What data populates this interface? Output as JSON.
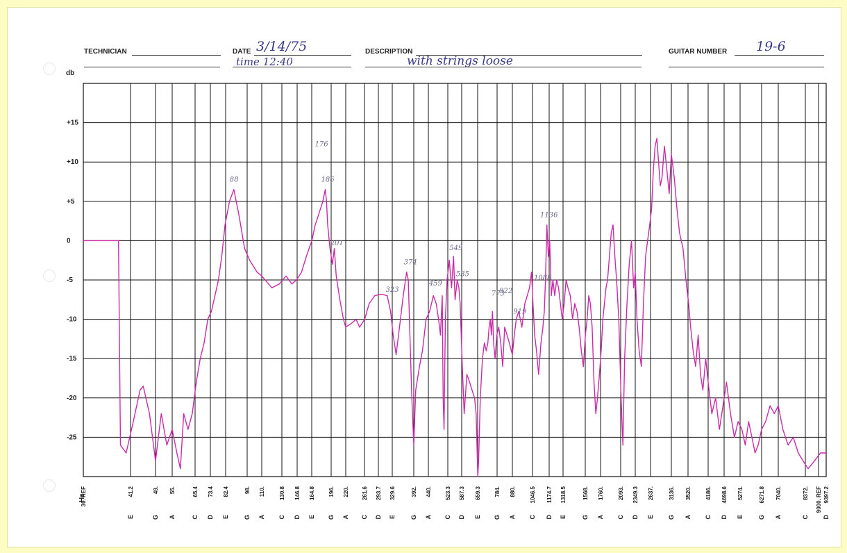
{
  "form": {
    "technician_label": "TECHNICIAN",
    "date_label": "DATE",
    "date_value": "3/14/75",
    "time_value": "time 12:40",
    "description_label": "DESCRIPTION",
    "description_value": "with strings loose",
    "guitar_number_label": "GUITAR NUMBER",
    "guitar_number_value": "19-6"
  },
  "chart_data": {
    "type": "line",
    "ylabel": "db",
    "xlabel": "Hz",
    "ylim": [
      -30,
      20
    ],
    "y_ticks": [
      "+15",
      "+10",
      "+5",
      "0",
      "-5",
      "-10",
      "-15",
      "-20",
      "-25"
    ],
    "y_tick_values": [
      15,
      10,
      5,
      0,
      -5,
      -10,
      -15,
      -20,
      -25
    ],
    "x_scale": "log (piano-note grid)",
    "x_ticks": [
      {
        "freq": "30. REF",
        "note": ""
      },
      {
        "freq": "41.2",
        "note": "E"
      },
      {
        "freq": "49.",
        "note": "G"
      },
      {
        "freq": "55.",
        "note": "A"
      },
      {
        "freq": "65.4",
        "note": "C"
      },
      {
        "freq": "73.4",
        "note": "D"
      },
      {
        "freq": "82.4",
        "note": "E"
      },
      {
        "freq": "98.",
        "note": "G"
      },
      {
        "freq": "110.",
        "note": "A"
      },
      {
        "freq": "130.8",
        "note": "C"
      },
      {
        "freq": "146.8",
        "note": "D"
      },
      {
        "freq": "164.8",
        "note": "E"
      },
      {
        "freq": "196.",
        "note": "G"
      },
      {
        "freq": "220.",
        "note": "A"
      },
      {
        "freq": "261.6",
        "note": "C"
      },
      {
        "freq": "293.7",
        "note": "D"
      },
      {
        "freq": "329.6",
        "note": "E"
      },
      {
        "freq": "392.",
        "note": "G"
      },
      {
        "freq": "440.",
        "note": "A"
      },
      {
        "freq": "523.3",
        "note": "C"
      },
      {
        "freq": "587.3",
        "note": "D"
      },
      {
        "freq": "659.3",
        "note": "E"
      },
      {
        "freq": "784.",
        "note": "G"
      },
      {
        "freq": "880.",
        "note": "A"
      },
      {
        "freq": "1046.5",
        "note": "C"
      },
      {
        "freq": "1174.7",
        "note": "D"
      },
      {
        "freq": "1318.5",
        "note": "E"
      },
      {
        "freq": "1568.",
        "note": "G"
      },
      {
        "freq": "1760.",
        "note": "A"
      },
      {
        "freq": "2093.",
        "note": "C"
      },
      {
        "freq": "2349.3",
        "note": "D"
      },
      {
        "freq": "2637.",
        "note": "E"
      },
      {
        "freq": "3136.",
        "note": "G"
      },
      {
        "freq": "3520.",
        "note": "A"
      },
      {
        "freq": "4186.",
        "note": "C"
      },
      {
        "freq": "4698.6",
        "note": "D"
      },
      {
        "freq": "5274.",
        "note": "E"
      },
      {
        "freq": "6271.8",
        "note": "G"
      },
      {
        "freq": "7040.",
        "note": "A"
      },
      {
        "freq": "8372.",
        "note": "C"
      },
      {
        "freq": "9000. REF",
        "note": ""
      },
      {
        "freq": "9397.2",
        "note": "D"
      }
    ],
    "series": [
      {
        "color": "#cc2aa8",
        "points": [
          [
            30,
            0
          ],
          [
            38,
            0
          ],
          [
            38.5,
            -26
          ],
          [
            40,
            -27
          ],
          [
            42,
            -23
          ],
          [
            44,
            -19
          ],
          [
            45,
            -18.5
          ],
          [
            47,
            -22
          ],
          [
            49,
            -28
          ],
          [
            51,
            -22
          ],
          [
            53,
            -26
          ],
          [
            55,
            -24
          ],
          [
            57,
            -27
          ],
          [
            58.5,
            -29
          ],
          [
            60,
            -22
          ],
          [
            62,
            -24
          ],
          [
            64,
            -22
          ],
          [
            66,
            -18
          ],
          [
            68,
            -15
          ],
          [
            70,
            -13
          ],
          [
            72,
            -10
          ],
          [
            74,
            -9
          ],
          [
            76,
            -7
          ],
          [
            78,
            -5
          ],
          [
            80,
            -2
          ],
          [
            82,
            2
          ],
          [
            85,
            5
          ],
          [
            88,
            6.5
          ],
          [
            92,
            3
          ],
          [
            96,
            -1
          ],
          [
            100,
            -2.5
          ],
          [
            106,
            -4
          ],
          [
            110,
            -4.5
          ],
          [
            120,
            -6
          ],
          [
            128,
            -5.5
          ],
          [
            135,
            -4.5
          ],
          [
            141,
            -5.5
          ],
          [
            146,
            -5
          ],
          [
            152,
            -4
          ],
          [
            158,
            -2
          ],
          [
            165,
            0
          ],
          [
            170,
            2
          ],
          [
            176,
            3.5
          ],
          [
            182,
            5
          ],
          [
            186,
            6.5
          ],
          [
            188,
            5
          ],
          [
            190,
            2
          ],
          [
            194,
            -1
          ],
          [
            198,
            -3
          ],
          [
            201,
            -1
          ],
          [
            204,
            -4.5
          ],
          [
            210,
            -7.5
          ],
          [
            216,
            -10
          ],
          [
            220,
            -11
          ],
          [
            232,
            -10.5
          ],
          [
            242,
            -10
          ],
          [
            250,
            -11
          ],
          [
            262,
            -10
          ],
          [
            272,
            -8
          ],
          [
            285,
            -7
          ],
          [
            300,
            -6.8
          ],
          [
            316,
            -7
          ],
          [
            325,
            -9
          ],
          [
            332,
            -12
          ],
          [
            340,
            -14.5
          ],
          [
            352,
            -10
          ],
          [
            360,
            -7
          ],
          [
            370,
            -4
          ],
          [
            375,
            -5
          ],
          [
            380,
            -12
          ],
          [
            386,
            -20
          ],
          [
            392,
            -26
          ],
          [
            398,
            -19
          ],
          [
            410,
            -16
          ],
          [
            420,
            -14
          ],
          [
            432,
            -10
          ],
          [
            445,
            -9
          ],
          [
            460,
            -7
          ],
          [
            472,
            -8
          ],
          [
            482,
            -10
          ],
          [
            490,
            -12
          ],
          [
            498,
            -7
          ],
          [
            502,
            -20
          ],
          [
            506,
            -24
          ],
          [
            512,
            -10
          ],
          [
            520,
            -5
          ],
          [
            530,
            -2.5
          ],
          [
            540,
            -6
          ],
          [
            549,
            -2
          ],
          [
            556,
            -7.5
          ],
          [
            566,
            -5
          ],
          [
            574,
            -6
          ],
          [
            580,
            -8
          ],
          [
            590,
            -16
          ],
          [
            598,
            -22
          ],
          [
            610,
            -17
          ],
          [
            622,
            -18
          ],
          [
            633,
            -19
          ],
          [
            645,
            -20
          ],
          [
            652,
            -22
          ],
          [
            660,
            -30
          ],
          [
            665,
            -28
          ],
          [
            675,
            -20
          ],
          [
            688,
            -15
          ],
          [
            700,
            -13
          ],
          [
            712,
            -14
          ],
          [
            722,
            -13
          ],
          [
            730,
            -11
          ],
          [
            738,
            -10
          ],
          [
            745,
            -12
          ],
          [
            752,
            -9
          ],
          [
            760,
            -13
          ],
          [
            770,
            -15
          ],
          [
            782,
            -12
          ],
          [
            794,
            -11
          ],
          [
            806,
            -13
          ],
          [
            818,
            -16
          ],
          [
            830,
            -11
          ],
          [
            845,
            -12
          ],
          [
            860,
            -13
          ],
          [
            880,
            -14.5
          ],
          [
            895,
            -12
          ],
          [
            910,
            -10
          ],
          [
            930,
            -9
          ],
          [
            955,
            -11
          ],
          [
            980,
            -8
          ],
          [
            1000,
            -7
          ],
          [
            1020,
            -6
          ],
          [
            1038,
            -4
          ],
          [
            1050,
            -8
          ],
          [
            1062,
            -12
          ],
          [
            1076,
            -14
          ],
          [
            1092,
            -17
          ],
          [
            1110,
            -13
          ],
          [
            1125,
            -11
          ],
          [
            1136,
            -9
          ],
          [
            1145,
            -5
          ],
          [
            1156,
            2
          ],
          [
            1168,
            -2
          ],
          [
            1180,
            0
          ],
          [
            1196,
            -7
          ],
          [
            1212,
            -5
          ],
          [
            1230,
            -7
          ],
          [
            1250,
            -5
          ],
          [
            1270,
            -6
          ],
          [
            1290,
            -8
          ],
          [
            1310,
            -10
          ],
          [
            1330,
            -8
          ],
          [
            1350,
            -5
          ],
          [
            1370,
            -6
          ],
          [
            1395,
            -7
          ],
          [
            1420,
            -10
          ],
          [
            1445,
            -8
          ],
          [
            1470,
            -9
          ],
          [
            1495,
            -11
          ],
          [
            1520,
            -14
          ],
          [
            1545,
            -16
          ],
          [
            1570,
            -12
          ],
          [
            1590,
            -10
          ],
          [
            1610,
            -7
          ],
          [
            1630,
            -8
          ],
          [
            1652,
            -11
          ],
          [
            1675,
            -18
          ],
          [
            1698,
            -22
          ],
          [
            1720,
            -20
          ],
          [
            1745,
            -17
          ],
          [
            1770,
            -14
          ],
          [
            1795,
            -10
          ],
          [
            1820,
            -8
          ],
          [
            1845,
            -6
          ],
          [
            1870,
            -5
          ],
          [
            1900,
            -2
          ],
          [
            1930,
            1
          ],
          [
            1960,
            2
          ],
          [
            1990,
            -2
          ],
          [
            2020,
            -5
          ],
          [
            2060,
            -10
          ],
          [
            2100,
            -20
          ],
          [
            2130,
            -26
          ],
          [
            2160,
            -15
          ],
          [
            2200,
            -8
          ],
          [
            2240,
            -3
          ],
          [
            2280,
            0
          ],
          [
            2320,
            -6
          ],
          [
            2349,
            -4
          ],
          [
            2380,
            -10
          ],
          [
            2420,
            -14
          ],
          [
            2460,
            -16
          ],
          [
            2500,
            -8
          ],
          [
            2540,
            -2
          ],
          [
            2580,
            0
          ],
          [
            2620,
            2
          ],
          [
            2660,
            4
          ],
          [
            2700,
            9
          ],
          [
            2740,
            12
          ],
          [
            2780,
            13
          ],
          [
            2820,
            10
          ],
          [
            2860,
            7
          ],
          [
            2900,
            8
          ],
          [
            2960,
            12
          ],
          [
            3020,
            9
          ],
          [
            3080,
            6
          ],
          [
            3136,
            11
          ],
          [
            3200,
            8
          ],
          [
            3260,
            4
          ],
          [
            3320,
            1
          ],
          [
            3400,
            -1
          ],
          [
            3470,
            -5
          ],
          [
            3540,
            -8
          ],
          [
            3600,
            -11
          ],
          [
            3680,
            -14
          ],
          [
            3760,
            -16
          ],
          [
            3840,
            -12
          ],
          [
            3920,
            -17
          ],
          [
            4000,
            -19
          ],
          [
            4100,
            -15
          ],
          [
            4186,
            -18
          ],
          [
            4300,
            -22
          ],
          [
            4420,
            -20
          ],
          [
            4540,
            -24
          ],
          [
            4660,
            -21
          ],
          [
            4780,
            -18
          ],
          [
            4920,
            -22
          ],
          [
            5060,
            -25
          ],
          [
            5200,
            -23
          ],
          [
            5350,
            -24
          ],
          [
            5500,
            -26
          ],
          [
            5650,
            -23
          ],
          [
            5800,
            -25
          ],
          [
            5950,
            -27
          ],
          [
            6100,
            -26
          ],
          [
            6271.8,
            -24
          ],
          [
            6450,
            -23
          ],
          [
            6650,
            -21
          ],
          [
            6850,
            -22
          ],
          [
            7040,
            -21
          ],
          [
            7250,
            -24
          ],
          [
            7500,
            -26
          ],
          [
            7750,
            -25
          ],
          [
            8000,
            -27
          ],
          [
            8250,
            -28
          ],
          [
            8500,
            -29
          ],
          [
            8800,
            -28
          ],
          [
            9100,
            -27
          ],
          [
            9397.2,
            -27
          ]
        ]
      }
    ],
    "annotations": [
      {
        "text": "88",
        "x": 88,
        "y": 7.5
      },
      {
        "text": "176",
        "x": 176,
        "y": 12
      },
      {
        "text": "186",
        "x": 186,
        "y": 7.5
      },
      {
        "text": "201",
        "x": 201,
        "y": -0.6
      },
      {
        "text": "374",
        "x": 374,
        "y": -3
      },
      {
        "text": "323",
        "x": 323,
        "y": -6.5
      },
      {
        "text": "459",
        "x": 459,
        "y": -5.7
      },
      {
        "text": "549",
        "x": 549,
        "y": -1.2
      },
      {
        "text": "535",
        "x": 580,
        "y": -4.5
      },
      {
        "text": "773",
        "x": 773,
        "y": -7
      },
      {
        "text": "822",
        "x": 822,
        "y": -6.7
      },
      {
        "text": "919",
        "x": 919,
        "y": -9.3
      },
      {
        "text": "1088",
        "x": 1088,
        "y": -5
      },
      {
        "text": "1136",
        "x": 1136,
        "y": 3
      }
    ]
  }
}
